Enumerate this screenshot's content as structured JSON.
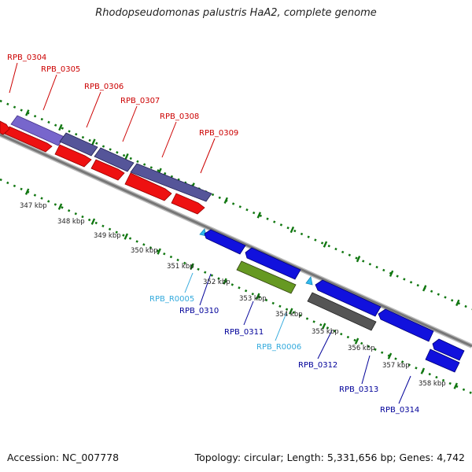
{
  "title": "Rhodopseudomonas palustris HaA2, complete genome",
  "footer": {
    "accession": "Accession: NC_007778",
    "summary": "Topology: circular; Length: 5,331,656 bp; Genes: 4,742"
  },
  "colors": {
    "top_label": "#cc0000",
    "bottom_label": "#000099",
    "rna_label": "#33aadd",
    "red_gene": "#ee1111",
    "purple_gene": "#555599",
    "lavender_gene": "#7766cc",
    "blue_gene": "#1111dd",
    "olive_gene": "#669922",
    "gray_gene": "#555555",
    "rna_gene": "#33bbee",
    "ticks": "#117711",
    "backbone": "#888888"
  },
  "top_labels": [
    "RPB_0304",
    "RPB_0305",
    "RPB_0306",
    "RPB_0307",
    "RPB_0308",
    "RPB_0309"
  ],
  "bottom_labels": [
    "RPB_R0005",
    "RPB_0310",
    "RPB_0311",
    "RPB_R0006",
    "RPB_0312",
    "RPB_0313",
    "RPB_0314"
  ],
  "kbp_labels": [
    "347 kbp",
    "348 kbp",
    "349 kbp",
    "350 kbp",
    "351 kbp",
    "352 kbp",
    "353 kbp",
    "354 kbp",
    "355 kbp",
    "356 kbp",
    "357 kbp",
    "358 kbp"
  ]
}
